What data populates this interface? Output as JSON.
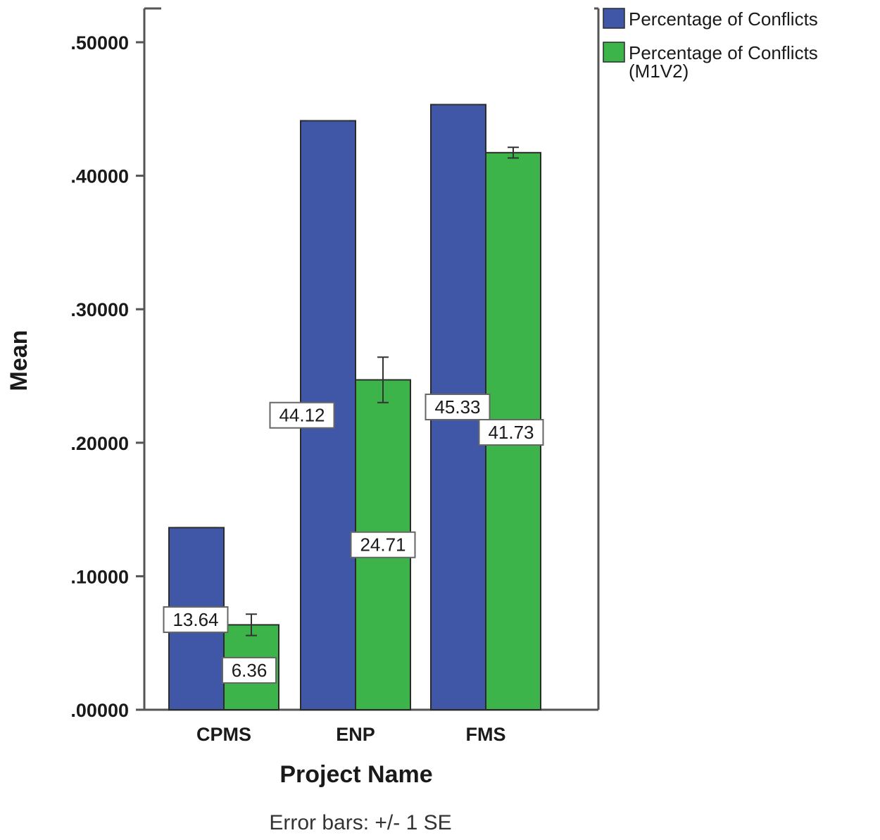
{
  "chart_data": {
    "type": "bar",
    "categories": [
      "CPMS",
      "ENP",
      "FMS"
    ],
    "series": [
      {
        "name": "Percentage of Conflicts",
        "color": "#3f57a6",
        "values": [
          0.1364,
          0.4412,
          0.4533
        ],
        "data_labels": [
          "13.64",
          "44.12",
          "45.33"
        ],
        "error": [
          0.0,
          0.0,
          0.0
        ]
      },
      {
        "name": "Percentage of Conflicts (M1V2)",
        "color": "#3cb44a",
        "values": [
          0.0636,
          0.2471,
          0.4173
        ],
        "data_labels": [
          "6.36",
          "24.71",
          "41.73"
        ],
        "error": [
          0.008,
          0.017,
          0.004
        ]
      }
    ],
    "xlabel": "Project Name",
    "ylabel": "Mean",
    "ylim": [
      0,
      0.53
    ],
    "yticks": [
      0.0,
      0.1,
      0.2,
      0.3,
      0.4,
      0.5
    ],
    "ytick_labels": [
      ".00000",
      ".10000",
      ".20000",
      ".30000",
      ".40000",
      ".50000"
    ],
    "legend": {
      "position": "top-right",
      "entries": [
        {
          "lines": [
            "Percentage of Conflicts"
          ]
        },
        {
          "lines": [
            "Percentage of Conflicts",
            "(M1V2)"
          ]
        }
      ]
    },
    "note": "Error bars: +/- 1 SE",
    "grid": false
  }
}
